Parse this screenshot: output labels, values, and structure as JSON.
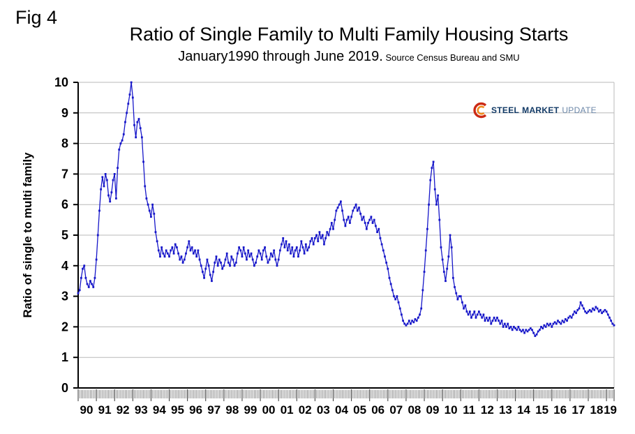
{
  "fig_label": "Fig 4",
  "header": {
    "title": "Ratio of Single Family to Multi Family Housing Starts",
    "subtitle": "January1990 through June 2019.",
    "source": " Source Census Bureau and SMU"
  },
  "logo": {
    "word1": "STEEL",
    "word2": "MARKET",
    "word3": "UPDATE"
  },
  "chart_data": {
    "type": "line",
    "title": "Ratio of Single Family to Multi Family Housing Starts",
    "subtitle": "January1990 through June 2019.",
    "source": "Source Census Bureau and SMU",
    "ylabel": "Ratio of single to multi family",
    "ylim": [
      0,
      10
    ],
    "yticks": [
      0,
      1,
      2,
      3,
      4,
      5,
      6,
      7,
      8,
      9,
      10
    ],
    "grid": "horizontal",
    "legend": false,
    "x_start": "1990-01",
    "x_end": "2019-06",
    "categories": [
      "90",
      "91",
      "92",
      "93",
      "94",
      "95",
      "96",
      "97",
      "98",
      "99",
      "00",
      "01",
      "02",
      "03",
      "04",
      "05",
      "06",
      "07",
      "08",
      "09",
      "10",
      "11",
      "12",
      "13",
      "14",
      "15",
      "16",
      "17",
      "18",
      "19"
    ],
    "series": [
      {
        "label": "Ratio of single to multi family",
        "color": "#1717c9",
        "values": [
          3.1,
          3.2,
          3.6,
          3.9,
          4.0,
          3.6,
          3.4,
          3.3,
          3.5,
          3.4,
          3.3,
          3.6,
          4.2,
          5.0,
          5.8,
          6.5,
          6.9,
          6.6,
          7.0,
          6.8,
          6.3,
          6.1,
          6.4,
          6.8,
          7.0,
          6.2,
          7.2,
          7.8,
          8.0,
          8.1,
          8.3,
          8.7,
          9.0,
          9.3,
          9.6,
          10.0,
          9.5,
          8.6,
          8.2,
          8.7,
          8.8,
          8.5,
          8.2,
          7.4,
          6.6,
          6.2,
          6.0,
          5.8,
          5.6,
          6.0,
          5.7,
          5.1,
          4.8,
          4.5,
          4.3,
          4.6,
          4.4,
          4.3,
          4.5,
          4.4,
          4.3,
          4.5,
          4.6,
          4.4,
          4.7,
          4.6,
          4.4,
          4.2,
          4.3,
          4.1,
          4.2,
          4.4,
          4.6,
          4.8,
          4.5,
          4.6,
          4.4,
          4.5,
          4.3,
          4.5,
          4.2,
          4.0,
          3.8,
          3.6,
          3.9,
          4.2,
          4.0,
          3.7,
          3.5,
          3.8,
          4.1,
          4.3,
          4.0,
          4.2,
          4.1,
          3.9,
          4.0,
          4.2,
          4.4,
          4.1,
          4.0,
          4.3,
          4.2,
          4.0,
          4.1,
          4.4,
          4.6,
          4.5,
          4.3,
          4.6,
          4.4,
          4.2,
          4.5,
          4.3,
          4.4,
          4.2,
          4.0,
          4.1,
          4.3,
          4.5,
          4.4,
          4.2,
          4.5,
          4.6,
          4.3,
          4.1,
          4.2,
          4.4,
          4.3,
          4.5,
          4.2,
          4.0,
          4.2,
          4.5,
          4.7,
          4.9,
          4.6,
          4.8,
          4.5,
          4.7,
          4.4,
          4.6,
          4.3,
          4.5,
          4.6,
          4.3,
          4.5,
          4.8,
          4.6,
          4.4,
          4.7,
          4.5,
          4.6,
          4.8,
          4.9,
          4.7,
          4.9,
          5.0,
          4.8,
          5.1,
          4.9,
          5.0,
          4.7,
          4.9,
          5.1,
          5.0,
          5.2,
          5.4,
          5.2,
          5.5,
          5.8,
          5.9,
          6.0,
          6.1,
          5.8,
          5.5,
          5.3,
          5.5,
          5.6,
          5.4,
          5.6,
          5.8,
          5.9,
          6.0,
          5.8,
          5.9,
          5.7,
          5.5,
          5.6,
          5.4,
          5.2,
          5.4,
          5.5,
          5.6,
          5.4,
          5.5,
          5.3,
          5.1,
          5.2,
          4.9,
          4.7,
          4.5,
          4.3,
          4.1,
          3.9,
          3.6,
          3.4,
          3.2,
          3.0,
          2.9,
          3.0,
          2.8,
          2.6,
          2.4,
          2.2,
          2.1,
          2.05,
          2.1,
          2.2,
          2.1,
          2.2,
          2.15,
          2.25,
          2.2,
          2.3,
          2.4,
          2.6,
          3.2,
          3.8,
          4.5,
          5.2,
          6.0,
          6.8,
          7.2,
          7.4,
          6.5,
          6.0,
          6.3,
          5.5,
          4.6,
          4.2,
          3.8,
          3.5,
          3.9,
          4.3,
          5.0,
          4.6,
          3.6,
          3.3,
          3.1,
          2.9,
          3.0,
          3.0,
          2.8,
          2.6,
          2.7,
          2.5,
          2.4,
          2.5,
          2.3,
          2.4,
          2.5,
          2.3,
          2.4,
          2.5,
          2.4,
          2.3,
          2.4,
          2.2,
          2.3,
          2.2,
          2.3,
          2.1,
          2.2,
          2.3,
          2.2,
          2.3,
          2.2,
          2.1,
          2.2,
          2.0,
          2.1,
          2.0,
          2.1,
          1.95,
          2.0,
          1.9,
          2.0,
          1.95,
          1.9,
          2.0,
          1.9,
          1.85,
          1.9,
          1.8,
          1.9,
          1.85,
          1.9,
          1.95,
          1.9,
          1.8,
          1.7,
          1.75,
          1.85,
          1.9,
          2.0,
          1.95,
          2.05,
          2.0,
          2.1,
          2.05,
          2.1,
          2.0,
          2.1,
          2.15,
          2.1,
          2.2,
          2.15,
          2.1,
          2.2,
          2.15,
          2.25,
          2.2,
          2.3,
          2.35,
          2.3,
          2.4,
          2.5,
          2.45,
          2.55,
          2.6,
          2.8,
          2.7,
          2.6,
          2.5,
          2.45,
          2.5,
          2.55,
          2.5,
          2.6,
          2.55,
          2.65,
          2.6,
          2.5,
          2.55,
          2.45,
          2.5,
          2.55,
          2.5,
          2.4,
          2.3,
          2.2,
          2.1,
          2.05
        ]
      }
    ]
  }
}
